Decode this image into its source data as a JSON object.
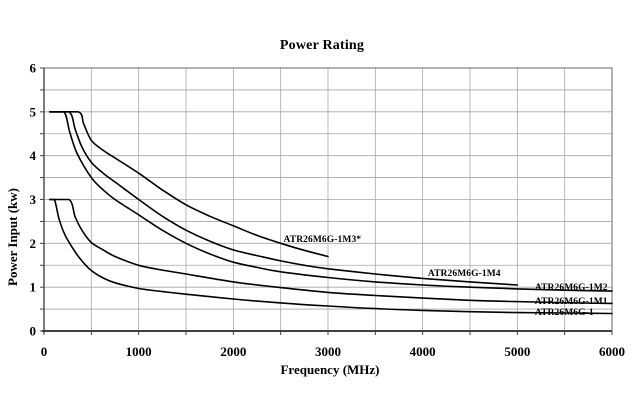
{
  "chart_data": {
    "type": "line",
    "title": "Power Rating",
    "xlabel": "Frequency (MHz)",
    "ylabel": "Power Input (kw)",
    "xlim": [
      0,
      6000
    ],
    "ylim": [
      0,
      6
    ],
    "x_ticks": [
      0,
      1000,
      2000,
      3000,
      4000,
      5000,
      6000
    ],
    "y_ticks": [
      0,
      1,
      2,
      3,
      4,
      5,
      6
    ],
    "x_grid_step": 500,
    "y_grid_step": 0.5,
    "grid": true,
    "legend_position": "inline-curve-labels",
    "series": [
      {
        "name": "ATR26M6G-1M3*",
        "label_x": 2530,
        "label_y": 2.03,
        "points": [
          [
            60,
            5
          ],
          [
            360,
            5
          ],
          [
            420,
            4.72
          ],
          [
            500,
            4.35
          ],
          [
            625,
            4.12
          ],
          [
            750,
            3.95
          ],
          [
            1000,
            3.6
          ],
          [
            1250,
            3.22
          ],
          [
            1500,
            2.88
          ],
          [
            1750,
            2.62
          ],
          [
            2000,
            2.4
          ],
          [
            2250,
            2.18
          ],
          [
            2500,
            2.0
          ],
          [
            2750,
            1.84
          ],
          [
            3000,
            1.7
          ]
        ]
      },
      {
        "name": "ATR26M6G-1M4",
        "label_x": 4055,
        "label_y": 1.25,
        "points": [
          [
            60,
            5
          ],
          [
            265,
            5
          ],
          [
            330,
            4.6
          ],
          [
            400,
            4.2
          ],
          [
            500,
            3.85
          ],
          [
            625,
            3.6
          ],
          [
            750,
            3.4
          ],
          [
            1000,
            3.0
          ],
          [
            1250,
            2.62
          ],
          [
            1500,
            2.3
          ],
          [
            1750,
            2.05
          ],
          [
            2000,
            1.85
          ],
          [
            2250,
            1.72
          ],
          [
            2500,
            1.6
          ],
          [
            2750,
            1.5
          ],
          [
            3000,
            1.42
          ],
          [
            3500,
            1.3
          ],
          [
            4000,
            1.2
          ],
          [
            4500,
            1.12
          ],
          [
            5000,
            1.05
          ]
        ]
      },
      {
        "name": "ATR26M6G-1M2",
        "label_x": 5185,
        "label_y": 0.93,
        "points": [
          [
            60,
            5
          ],
          [
            210,
            5
          ],
          [
            270,
            4.55
          ],
          [
            350,
            4.05
          ],
          [
            500,
            3.5
          ],
          [
            625,
            3.22
          ],
          [
            750,
            3.0
          ],
          [
            1000,
            2.65
          ],
          [
            1250,
            2.3
          ],
          [
            1500,
            2.0
          ],
          [
            1750,
            1.76
          ],
          [
            2000,
            1.57
          ],
          [
            2250,
            1.45
          ],
          [
            2500,
            1.35
          ],
          [
            3000,
            1.22
          ],
          [
            3500,
            1.12
          ],
          [
            4000,
            1.05
          ],
          [
            4500,
            1.0
          ],
          [
            5000,
            0.96
          ],
          [
            5500,
            0.93
          ],
          [
            6000,
            0.91
          ]
        ]
      },
      {
        "name": "ATR26M6G-1M1",
        "label_x": 5185,
        "label_y": 0.62,
        "points": [
          [
            60,
            3
          ],
          [
            265,
            3
          ],
          [
            330,
            2.6
          ],
          [
            400,
            2.3
          ],
          [
            500,
            2.02
          ],
          [
            625,
            1.85
          ],
          [
            750,
            1.7
          ],
          [
            1000,
            1.5
          ],
          [
            1250,
            1.39
          ],
          [
            1500,
            1.3
          ],
          [
            2000,
            1.12
          ],
          [
            2500,
            0.99
          ],
          [
            3000,
            0.88
          ],
          [
            3500,
            0.81
          ],
          [
            4000,
            0.75
          ],
          [
            4500,
            0.7
          ],
          [
            5000,
            0.67
          ],
          [
            5500,
            0.645
          ],
          [
            6000,
            0.63
          ]
        ]
      },
      {
        "name": "ATR26M6G-1",
        "label_x": 5185,
        "label_y": 0.37,
        "points": [
          [
            60,
            3
          ],
          [
            110,
            3
          ],
          [
            160,
            2.55
          ],
          [
            220,
            2.2
          ],
          [
            300,
            1.9
          ],
          [
            400,
            1.6
          ],
          [
            500,
            1.38
          ],
          [
            625,
            1.21
          ],
          [
            750,
            1.1
          ],
          [
            1000,
            0.97
          ],
          [
            1250,
            0.9
          ],
          [
            1500,
            0.84
          ],
          [
            2000,
            0.73
          ],
          [
            2500,
            0.64
          ],
          [
            3000,
            0.57
          ],
          [
            3500,
            0.51
          ],
          [
            4000,
            0.47
          ],
          [
            4500,
            0.44
          ],
          [
            5000,
            0.42
          ],
          [
            5500,
            0.41
          ],
          [
            6000,
            0.4
          ]
        ]
      }
    ]
  },
  "colors": {
    "background": "#ffffff",
    "curve": "#000000",
    "grid": "#a6a6a6",
    "border": "#808080",
    "axis_x": "#404040",
    "axis_y": "#595959",
    "tick": "#404040",
    "text": "#000000"
  }
}
